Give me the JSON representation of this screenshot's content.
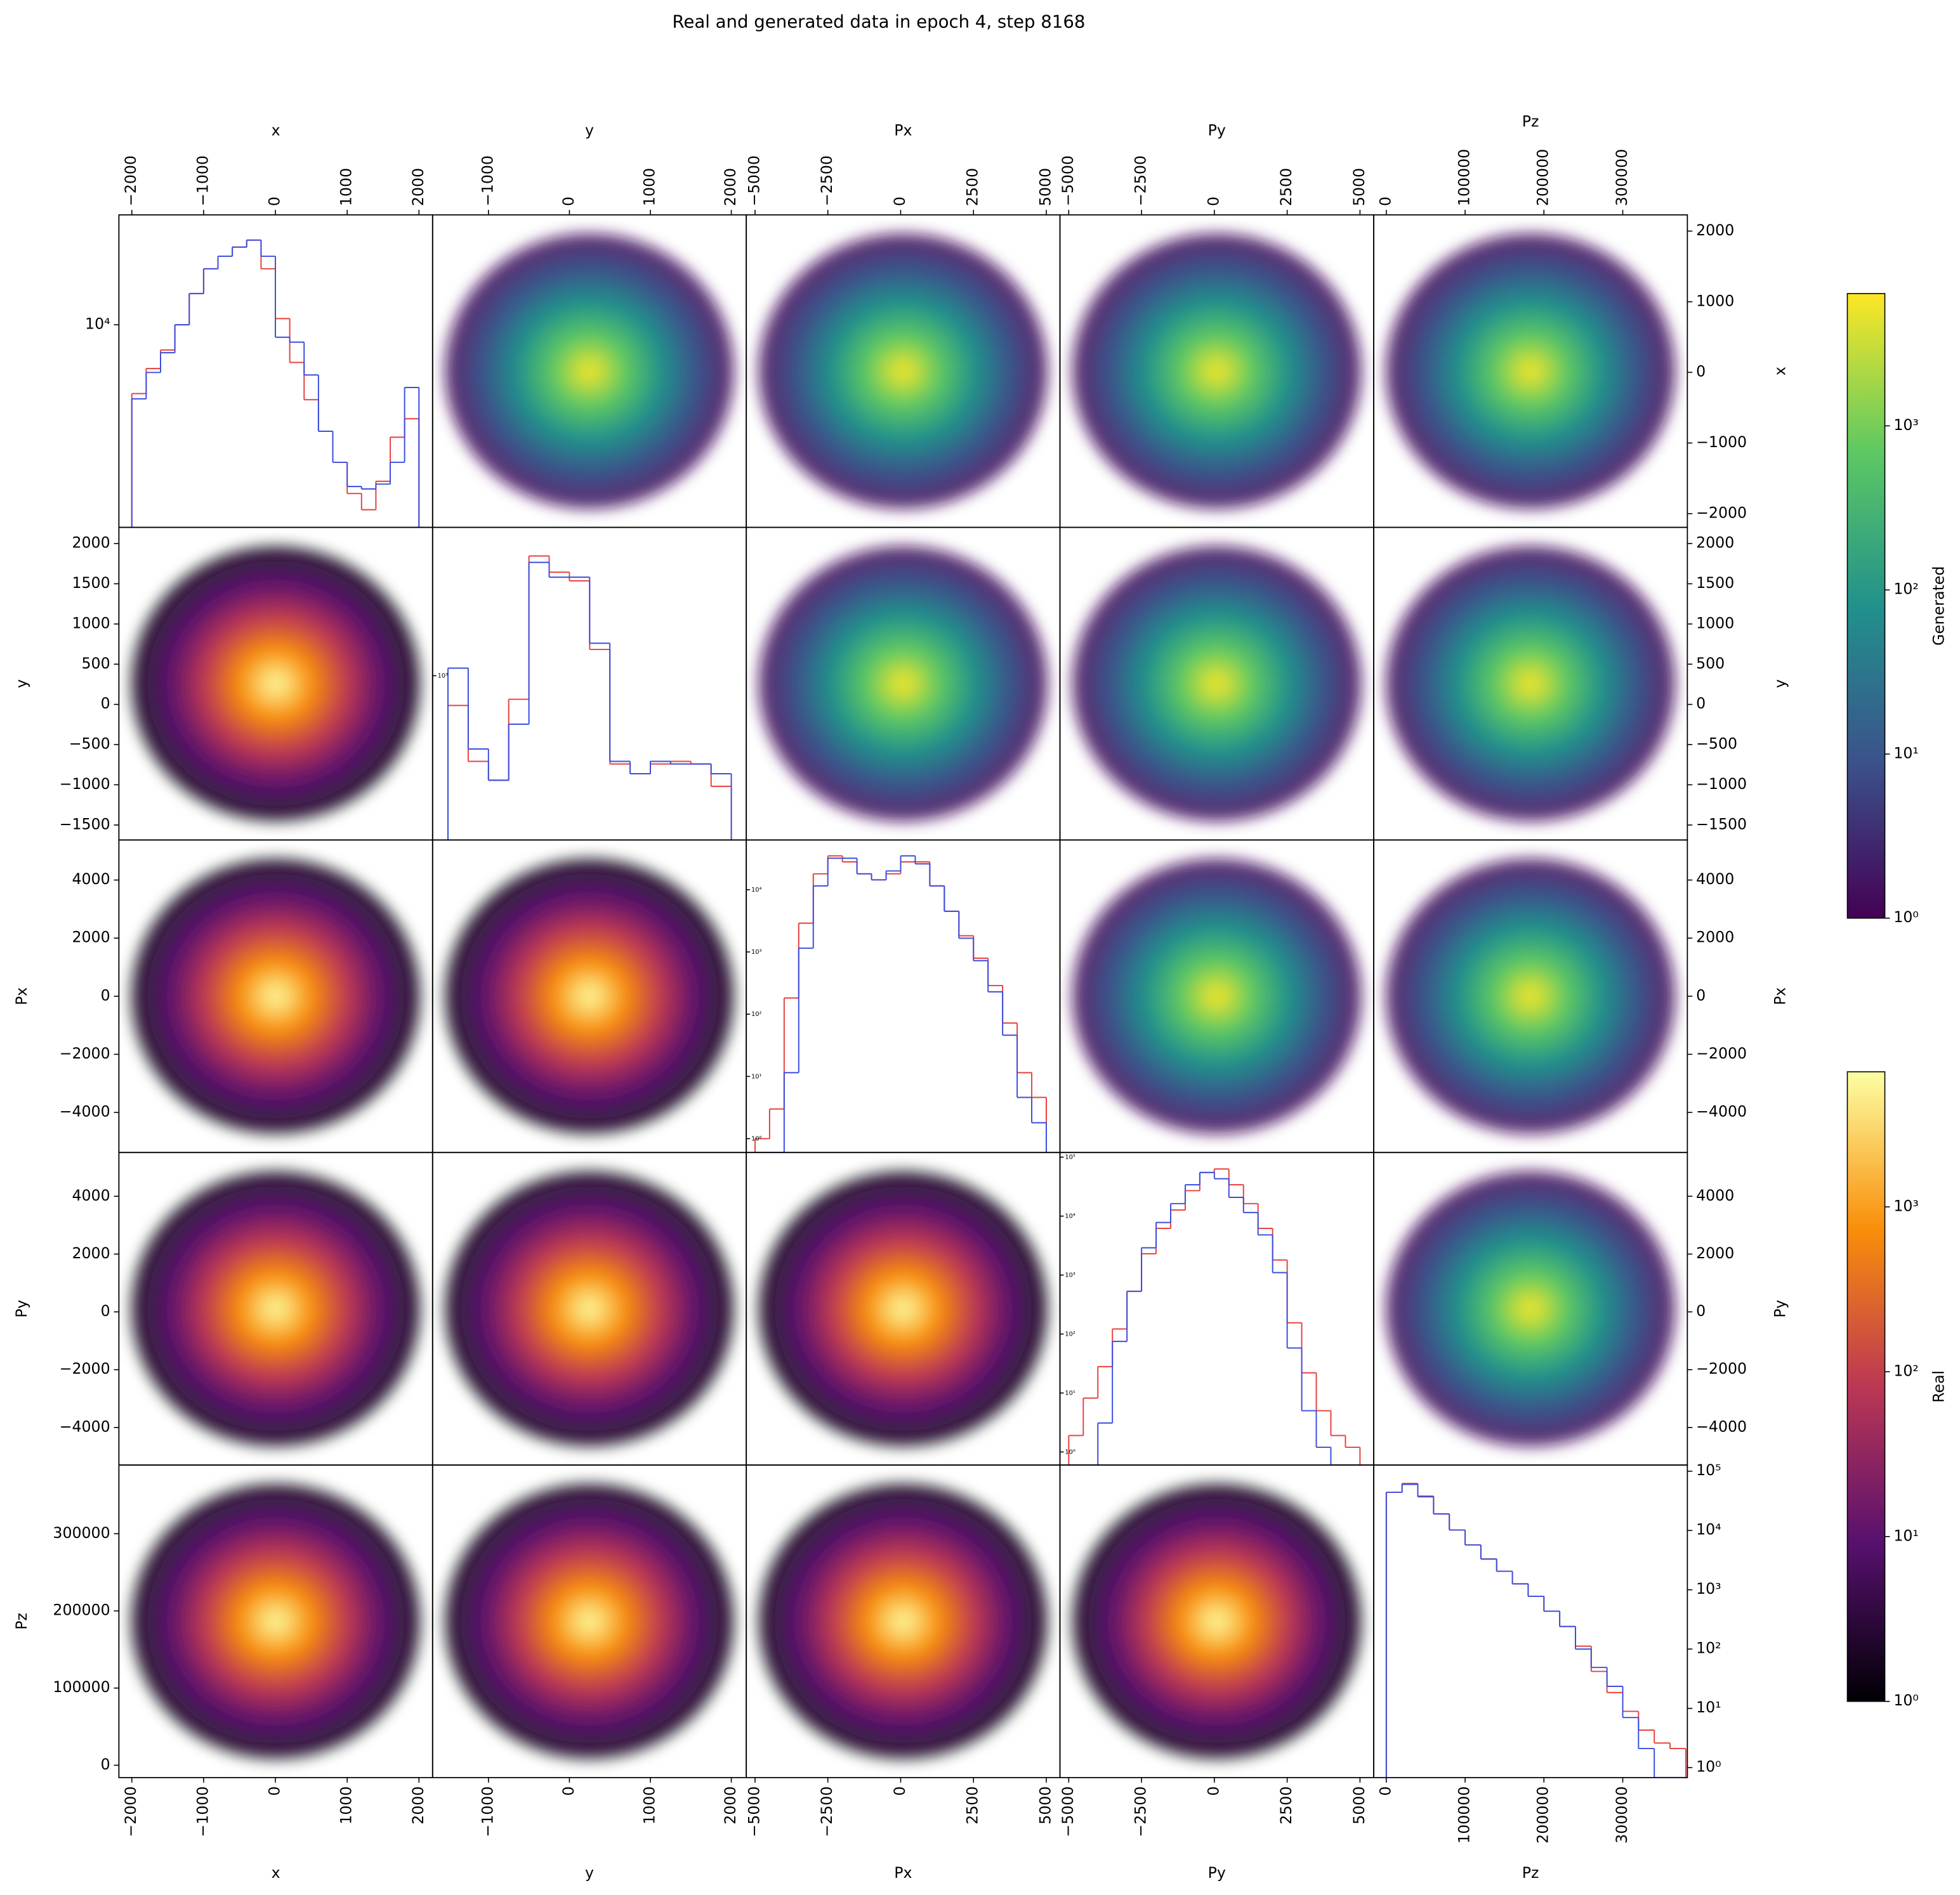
{
  "chart_data": {
    "type": "pairplot",
    "title": "Real and generated data in epoch 4, step 8168",
    "variables": [
      {
        "name": "x",
        "xlim": [
          -2180,
          2190
        ],
        "xticks": [
          {
            "value": -2000,
            "label": "−2000"
          },
          {
            "value": -1000,
            "label": "−1000"
          },
          0,
          1000,
          2000
        ],
        "ylim": [
          -2195,
          2230
        ],
        "yticks": [
          {
            "value": -2000,
            "label": "−2000"
          },
          {
            "value": -1000,
            "label": "−1000"
          },
          0,
          1000,
          2000
        ]
      },
      {
        "name": "y",
        "xlim": [
          -1690,
          2185
        ],
        "xticks": [
          {
            "value": -1000,
            "label": "−1000"
          },
          0,
          1000,
          2000
        ],
        "ylim": [
          -1686,
          2201
        ],
        "yticks": [
          {
            "value": -1500,
            "label": "−1500"
          },
          {
            "value": -1000,
            "label": "−1000"
          },
          {
            "value": -500,
            "label": "−500"
          },
          0,
          500,
          1000,
          1500,
          2000
        ]
      },
      {
        "name": "Px",
        "xlim": [
          -5300,
          5470
        ],
        "xticks": [
          {
            "value": -5000,
            "label": "−5000"
          },
          {
            "value": -2500,
            "label": "−2500"
          },
          0,
          2500,
          5000
        ],
        "ylim": [
          -5380,
          5380
        ],
        "yticks": [
          {
            "value": -4000,
            "label": "−4000"
          },
          {
            "value": -2000,
            "label": "−2000"
          },
          0,
          2000,
          4000
        ]
      },
      {
        "name": "Py",
        "xlim": [
          -5300,
          5470
        ],
        "xticks": [
          {
            "value": -5000,
            "label": "−5000"
          },
          {
            "value": -2500,
            "label": "−2500"
          },
          0,
          2500,
          5000
        ],
        "ylim": [
          -5300,
          5515
        ],
        "yticks": [
          {
            "value": -4000,
            "label": "−4000"
          },
          {
            "value": -2000,
            "label": "−2000"
          },
          0,
          2000,
          4000
        ]
      },
      {
        "name": "Pz",
        "xlim": [
          -16000,
          382000
        ],
        "xticks": [
          0,
          100000,
          200000,
          300000
        ],
        "ylim": [
          -16000,
          389000
        ],
        "yticks": [
          0,
          100000,
          200000,
          300000
        ]
      }
    ],
    "diagonal": [
      {
        "type": "histogram",
        "log": true,
        "ylim": [
          1500,
          28000
        ],
        "yticks": [
          {
            "value": 10000,
            "label": "10⁴"
          }
        ],
        "bins": [
          -2000,
          -1800,
          -1600,
          -1400,
          -1200,
          -1000,
          -800,
          -600,
          -400,
          -200,
          0,
          200,
          400,
          600,
          800,
          1000,
          1200,
          1400,
          1600,
          1800,
          2000
        ],
        "series": [
          {
            "color": "#e8413c",
            "values": [
              5250,
              6640,
              7900,
              10000,
              13400,
              16900,
              19000,
              20700,
              22100,
              16900,
              10600,
              7030,
              4960,
              3690,
              2760,
              2060,
              1770,
              2310,
              3490,
              4150
            ]
          },
          {
            "color": "#3a4ee0",
            "values": [
              5000,
              6400,
              7700,
              10000,
              13400,
              16900,
              19000,
              20700,
              22100,
              19000,
              8900,
              8500,
              6250,
              3690,
              2760,
              2200,
              2150,
              2250,
              2760,
              5560
            ]
          }
        ]
      },
      {
        "type": "histogram",
        "log": true,
        "ylim": [
          100,
          8000
        ],
        "yticks": [
          {
            "value": 1000,
            "label": "10³"
          }
        ],
        "bins": [
          -1500,
          -1250,
          -1000,
          -750,
          -500,
          -250,
          0,
          250,
          500,
          750,
          1000,
          1250,
          1500,
          1750,
          2000
        ],
        "series": [
          {
            "color": "#e8413c",
            "values": [
              659,
              301,
              231,
              719,
              5360,
              4270,
              3780,
              1445,
              290,
              253,
              290,
              301,
              290,
              212
            ]
          },
          {
            "color": "#3a4ee0",
            "values": [
              1112,
              358,
              231,
              507,
              4900,
              3980,
              3980,
              1577,
              301,
              253,
              301,
              290,
              290,
              253
            ]
          }
        ]
      },
      {
        "type": "histogram",
        "log": true,
        "ylim": [
          0.6,
          63000
        ],
        "yticks": [
          {
            "value": 1,
            "label": "10⁰"
          },
          {
            "value": 10,
            "label": "10¹"
          },
          {
            "value": 100,
            "label": "10²"
          },
          {
            "value": 1000,
            "label": "10³"
          },
          {
            "value": 10000,
            "label": "10⁴"
          }
        ],
        "bins": [
          -5000,
          -4500,
          -4000,
          -3500,
          -3000,
          -2500,
          -2000,
          -1500,
          -1000,
          -500,
          0,
          500,
          1000,
          1500,
          2000,
          2500,
          3000,
          3500,
          4000,
          4500,
          5000
        ],
        "series": [
          {
            "color": "#e8413c",
            "values": [
              1,
              3,
              182,
              2900,
              18000,
              35000,
              28000,
              18000,
              14400,
              18000,
              28000,
              28000,
              11500,
              4500,
              1820,
              794,
              288,
              72,
              11.5,
              4.6
            ]
          },
          {
            "color": "#3a4ee0",
            "values": [
              0,
              0,
              11.5,
              1150,
              11500,
              32000,
              32000,
              18000,
              14400,
              20000,
              35000,
              26000,
              11500,
              4500,
              1660,
              724,
              229,
              46,
              4.6,
              1.8
            ]
          }
        ]
      },
      {
        "type": "histogram",
        "log": true,
        "ylim": [
          0.6,
          120000
        ],
        "yticks": [
          {
            "value": 1,
            "label": "10⁰"
          },
          {
            "value": 10,
            "label": "10¹"
          },
          {
            "value": 100,
            "label": "10²"
          },
          {
            "value": 1000,
            "label": "10³"
          },
          {
            "value": 10000,
            "label": "10⁴"
          },
          {
            "value": 100000,
            "label": "10⁵"
          }
        ],
        "bins": [
          -5000,
          -4500,
          -4000,
          -3500,
          -3000,
          -2500,
          -2000,
          -1500,
          -1000,
          -500,
          0,
          500,
          1000,
          1500,
          2000,
          2500,
          3000,
          3500,
          4000,
          4500,
          5000
        ],
        "series": [
          {
            "color": "#e8413c",
            "values": [
              1.9,
              8.2,
              28,
              122,
              530,
              2300,
              6200,
              12700,
              27000,
              55000,
              63000,
              34000,
              16300,
              6200,
              1800,
              155,
              22,
              5,
              1.9,
              1.2
            ]
          },
          {
            "color": "#3a4ee0",
            "values": [
              0,
              0,
              3.1,
              75,
              530,
              2900,
              7800,
              16300,
              34000,
              55000,
              43000,
              20800,
              11500,
              4800,
              1100,
              58,
              5,
              1.2,
              0,
              0
            ]
          }
        ]
      },
      {
        "type": "histogram",
        "log": true,
        "ylim": [
          0.68,
          127000
        ],
        "yticks": [
          {
            "value": 1,
            "label": "10⁰"
          },
          {
            "value": 10,
            "label": "10¹"
          },
          {
            "value": 100,
            "label": "10²"
          },
          {
            "value": 1000,
            "label": "10³"
          },
          {
            "value": 10000,
            "label": "10⁴"
          },
          {
            "value": 100000,
            "label": "10⁵"
          }
        ],
        "bins": [
          0,
          20000,
          40000,
          60000,
          80000,
          100000,
          120000,
          140000,
          160000,
          180000,
          200000,
          220000,
          240000,
          260000,
          280000,
          300000,
          320000,
          340000,
          360000,
          380000
        ],
        "series": [
          {
            "color": "#e8413c",
            "values": [
              44000,
              62000,
              38000,
              19000,
              10200,
              5700,
              3300,
              2050,
              1260,
              775,
              435,
              240,
              112,
              42,
              18.5,
              8.9,
              4.3,
              2.6,
              2.1
            ]
          },
          {
            "color": "#3a4ee0",
            "values": [
              44000,
              60000,
              37000,
              19000,
              10200,
              5700,
              3300,
              2050,
              1260,
              775,
              435,
              240,
              100,
              49,
              23.5,
              7,
              2.1,
              0,
              0
            ]
          }
        ]
      }
    ],
    "colorbars": [
      {
        "label": "Generated",
        "log": true,
        "colormap": [
          "#440154",
          "#3b528b",
          "#21918c",
          "#5ec962",
          "#fde725"
        ],
        "ylim": [
          1,
          6400
        ],
        "yticks": [
          {
            "value": 1,
            "label": "10⁰"
          },
          {
            "value": 10,
            "label": "10¹"
          },
          {
            "value": 100,
            "label": "10²"
          },
          {
            "value": 1000,
            "label": "10³"
          }
        ]
      },
      {
        "label": "Real",
        "log": true,
        "colormap": [
          "#000004",
          "#57106e",
          "#bc3754",
          "#f98e09",
          "#fcffa4"
        ],
        "ylim": [
          1,
          6600
        ],
        "yticks": [
          {
            "value": 1,
            "label": "10⁰"
          },
          {
            "value": 10,
            "label": "10¹"
          },
          {
            "value": 100,
            "label": "10²"
          },
          {
            "value": 1000,
            "label": "10³"
          }
        ]
      }
    ]
  }
}
